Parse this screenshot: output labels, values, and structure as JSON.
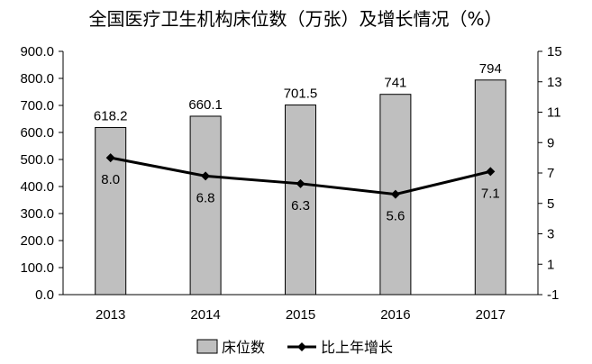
{
  "chart_data": {
    "type": "bar",
    "title": "全国医疗卫生机构床位数（万张）及增长情况（%）",
    "categories": [
      "2013",
      "2014",
      "2015",
      "2016",
      "2017"
    ],
    "series": [
      {
        "name": "床位数",
        "type": "bar",
        "axis": "left",
        "values": [
          618.2,
          660.1,
          701.5,
          741,
          794
        ],
        "value_labels": [
          "618.2",
          "660.1",
          "701.5",
          "741",
          "794"
        ],
        "color": "#bfbfbf"
      },
      {
        "name": "比上年增长",
        "type": "line",
        "axis": "right",
        "values": [
          8.0,
          6.8,
          6.3,
          5.6,
          7.1
        ],
        "value_labels": [
          "8.0",
          "6.8",
          "6.3",
          "5.6",
          "7.1"
        ],
        "color": "#000000"
      }
    ],
    "y_left": {
      "ylim": [
        0,
        900
      ],
      "ticks": [
        "0.0",
        "100.0",
        "200.0",
        "300.0",
        "400.0",
        "500.0",
        "600.0",
        "700.0",
        "800.0",
        "900.0"
      ]
    },
    "y_right": {
      "ylim": [
        -1,
        15
      ],
      "ticks": [
        "-1",
        "1",
        "3",
        "5",
        "7",
        "9",
        "11",
        "13",
        "15"
      ]
    },
    "grid": false,
    "legend_position": "bottom-center"
  }
}
